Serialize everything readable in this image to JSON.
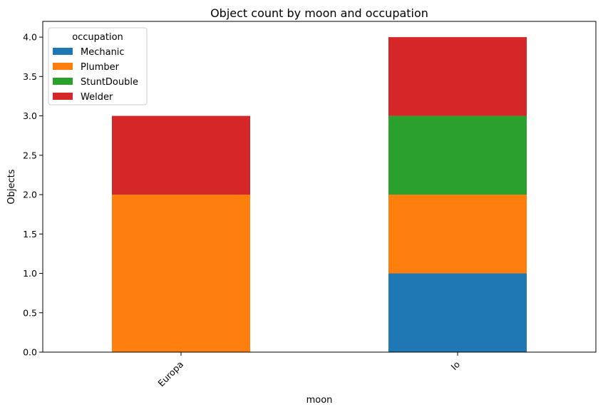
{
  "chart_data": {
    "type": "bar",
    "stacked": true,
    "title": "Object count by moon and occupation",
    "xlabel": "moon",
    "ylabel": "Objects",
    "categories": [
      "Europa",
      "Io"
    ],
    "series": [
      {
        "name": "Mechanic",
        "values": [
          0,
          1
        ],
        "color": "#1f77b4"
      },
      {
        "name": "Plumber",
        "values": [
          2,
          1
        ],
        "color": "#ff7f0e"
      },
      {
        "name": "StuntDouble",
        "values": [
          0,
          1
        ],
        "color": "#2ca02c"
      },
      {
        "name": "Welder",
        "values": [
          1,
          1
        ],
        "color": "#d62728"
      }
    ],
    "ylim": [
      0,
      4.2
    ],
    "yticks": [
      "0.0",
      "0.5",
      "1.0",
      "1.5",
      "2.0",
      "2.5",
      "3.0",
      "3.5",
      "4.0"
    ],
    "legend": {
      "title": "occupation",
      "placement": "upper left"
    },
    "grid": false
  }
}
